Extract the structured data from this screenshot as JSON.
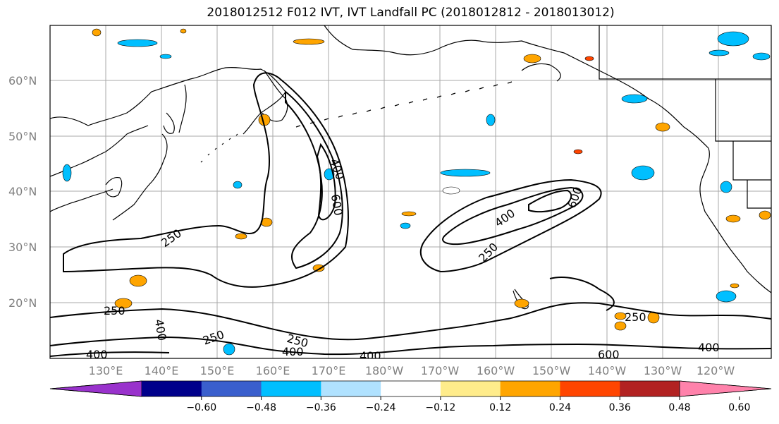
{
  "title": "2018012512 F012 IVT, IVT Landfall PC (2018012812 - 2018013012)",
  "lat_labels": [
    "60°N",
    "50°N",
    "40°N",
    "30°N",
    "20°N"
  ],
  "lon_labels": [
    "130°E",
    "140°E",
    "150°E",
    "160°E",
    "170°E",
    "180°W",
    "170°W",
    "160°W",
    "150°W",
    "140°W",
    "130°W",
    "120°W"
  ],
  "contour_labels": {
    "c250_west": "250",
    "c400_jet1": "400",
    "c600_jet1": "600",
    "c400_jet2": "400",
    "c600_jet2": "600",
    "c250_jet2": "250",
    "c250_sw": "250",
    "c400_sw": "400",
    "c250_s1": "250",
    "c250_s2": "250",
    "c400_s1": "400",
    "c400_s2": "400",
    "c400_sw2": "400",
    "c600_se": "600",
    "c400_se": "400",
    "c250_e": "250"
  },
  "colorbar": {
    "colors": [
      "#9932cc",
      "#00008b",
      "#3a5fcd",
      "#00bfff",
      "#b0e2ff",
      "#ffffff",
      "#ffec8b",
      "#ffa500",
      "#ff4500",
      "#b22222",
      "#ff82ab"
    ],
    "ticks": [
      "−0.60",
      "−0.48",
      "−0.36",
      "−0.24",
      "−0.12",
      "0.12",
      "0.24",
      "0.36",
      "0.48",
      "0.60"
    ]
  }
}
